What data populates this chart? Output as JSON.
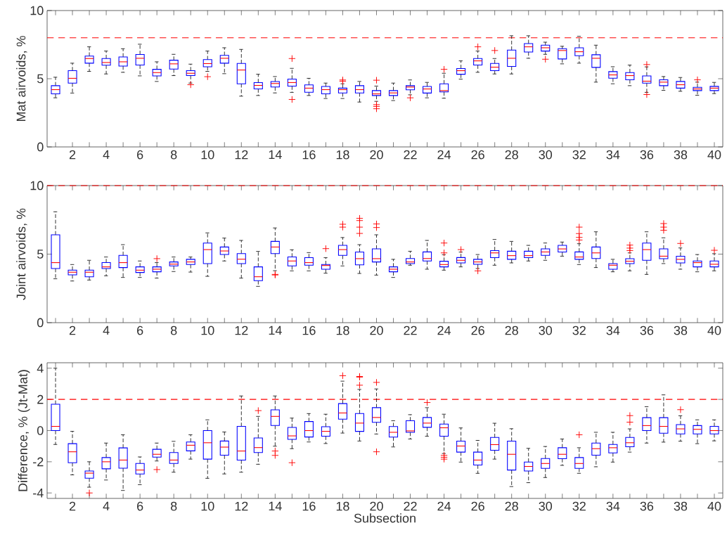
{
  "chart_data": [
    {
      "type": "box",
      "ylabel": "Mat airvoids, %",
      "color": "#0000ff",
      "grid": false,
      "categories": [
        null,
        "2",
        null,
        "4",
        null,
        "6",
        null,
        "8",
        null,
        "10",
        null,
        "12",
        null,
        "14",
        null,
        "16",
        null,
        "18",
        null,
        "20",
        null,
        "22",
        null,
        "24",
        null,
        "26",
        null,
        "28",
        null,
        "30",
        null,
        "32",
        null,
        "34",
        null,
        "36",
        null,
        "38",
        null,
        "40"
      ],
      "ylim": [
        0,
        10
      ],
      "yticks": [
        0,
        5,
        10
      ],
      "ref_lines": [
        {
          "axis": "y",
          "value": 8,
          "color": "#ff0000",
          "line_style": "dashed"
        }
      ],
      "boxes": [
        {
          "low": 3.6,
          "q1": 3.89,
          "median": 4.2,
          "q3": 4.49,
          "high": 5.11
        },
        {
          "low": 3.95,
          "q1": 4.68,
          "median": 5.03,
          "q3": 5.59,
          "high": 6.14
        },
        {
          "low": 5.54,
          "q1": 6.14,
          "median": 6.48,
          "q3": 6.66,
          "high": 7.34
        },
        {
          "low": 5.35,
          "q1": 5.99,
          "median": 6.19,
          "q3": 6.48,
          "high": 7.03
        },
        {
          "low": 5.47,
          "q1": 5.93,
          "median": 6.24,
          "q3": 6.6,
          "high": 7.2
        },
        {
          "low": 5.21,
          "q1": 6.0,
          "median": 6.5,
          "q3": 6.78,
          "high": 7.53
        },
        {
          "low": 4.8,
          "q1": 5.21,
          "median": 5.45,
          "q3": 5.69,
          "high": 6.24
        },
        {
          "low": 5.23,
          "q1": 5.71,
          "median": 6.09,
          "q3": 6.36,
          "high": 6.79
        },
        {
          "low": 4.68,
          "q1": 5.23,
          "median": 5.4,
          "q3": 5.59,
          "high": 6.07,
          "outliers": [
            4.56
          ]
        },
        {
          "low": 5.54,
          "q1": 5.88,
          "median": 6.11,
          "q3": 6.4,
          "high": 7.03,
          "outliers": [
            5.15
          ]
        },
        {
          "low": 5.37,
          "q1": 6.14,
          "median": 6.5,
          "q3": 6.71,
          "high": 7.27
        },
        {
          "low": 3.72,
          "q1": 4.63,
          "median": 5.64,
          "q3": 6.12,
          "high": 7.15
        },
        {
          "low": 3.77,
          "q1": 4.25,
          "median": 4.51,
          "q3": 4.72,
          "high": 5.33
        },
        {
          "low": 3.96,
          "q1": 4.39,
          "median": 4.65,
          "q3": 4.79,
          "high": 5.16
        },
        {
          "low": 4.0,
          "q1": 4.46,
          "median": 4.72,
          "q3": 4.97,
          "high": 5.76,
          "outliers": [
            6.48,
            3.48
          ]
        },
        {
          "low": 3.77,
          "q1": 4.01,
          "median": 4.31,
          "q3": 4.55,
          "high": 5.03
        },
        {
          "low": 3.55,
          "q1": 3.89,
          "median": 4.2,
          "q3": 4.43,
          "high": 4.68
        },
        {
          "low": 3.55,
          "q1": 3.96,
          "median": 4.2,
          "q3": 4.31,
          "high": 4.63,
          "outliers": [
            4.91,
            4.82
          ]
        },
        {
          "low": 3.29,
          "q1": 3.96,
          "median": 4.2,
          "q3": 4.49,
          "high": 4.8
        },
        {
          "low": 3.34,
          "q1": 3.77,
          "median": 3.89,
          "q3": 4.13,
          "high": 4.46,
          "outliers": [
            4.89,
            3.1,
            2.97,
            2.8
          ]
        },
        {
          "low": 3.4,
          "q1": 3.77,
          "median": 3.96,
          "q3": 4.13,
          "high": 4.68
        },
        {
          "low": 3.82,
          "q1": 4.19,
          "median": 4.39,
          "q3": 4.49,
          "high": 4.91,
          "outliers": [
            3.6
          ]
        },
        {
          "low": 3.6,
          "q1": 3.95,
          "median": 4.25,
          "q3": 4.43,
          "high": 4.73
        },
        {
          "low": 3.57,
          "q1": 4.03,
          "median": 4.13,
          "q3": 4.63,
          "high": 5.4,
          "outliers": [
            5.69
          ]
        },
        {
          "low": 4.97,
          "q1": 5.33,
          "median": 5.59,
          "q3": 5.75,
          "high": 6.31
        },
        {
          "low": 5.47,
          "q1": 6.0,
          "median": 6.31,
          "q3": 6.48,
          "high": 7.03,
          "outliers": [
            7.34
          ]
        },
        {
          "low": 5.35,
          "q1": 5.59,
          "median": 5.85,
          "q3": 6.12,
          "high": 6.48,
          "outliers": [
            7.07
          ]
        },
        {
          "low": 5.35,
          "q1": 5.9,
          "median": 6.5,
          "q3": 7.1,
          "high": 8.15
        },
        {
          "low": 6.5,
          "q1": 6.96,
          "median": 7.34,
          "q3": 7.58,
          "high": 8.15
        },
        {
          "low": 6.79,
          "q1": 7.03,
          "median": 7.27,
          "q3": 7.46,
          "high": 7.68,
          "outliers": [
            6.43
          ]
        },
        {
          "low": 6.09,
          "q1": 6.45,
          "median": 7.07,
          "q3": 7.2,
          "high": 7.38
        },
        {
          "low": 6.14,
          "q1": 6.69,
          "median": 6.98,
          "q3": 7.27,
          "high": 8.11
        },
        {
          "low": 4.75,
          "q1": 5.83,
          "median": 6.5,
          "q3": 6.76,
          "high": 7.46
        },
        {
          "low": 4.63,
          "q1": 5.04,
          "median": 5.28,
          "q3": 5.52,
          "high": 5.88
        },
        {
          "low": 4.49,
          "q1": 4.92,
          "median": 5.23,
          "q3": 5.45,
          "high": 6.0
        },
        {
          "low": 4.0,
          "q1": 4.68,
          "median": 4.82,
          "q3": 5.21,
          "high": 5.87,
          "outliers": [
            6.04,
            3.84
          ]
        },
        {
          "low": 4.15,
          "q1": 4.49,
          "median": 4.75,
          "q3": 4.92,
          "high": 5.16
        },
        {
          "low": 4.08,
          "q1": 4.31,
          "median": 4.56,
          "q3": 4.8,
          "high": 5.09
        },
        {
          "low": 3.79,
          "q1": 4.13,
          "median": 4.25,
          "q3": 4.37,
          "high": 4.75,
          "outliers": [
            4.92
          ]
        },
        {
          "low": 3.91,
          "q1": 4.13,
          "median": 4.31,
          "q3": 4.44,
          "high": 4.73
        }
      ]
    },
    {
      "type": "box",
      "ylabel": "Joint airvoids, %",
      "color": "#0000ff",
      "grid": false,
      "categories": [
        null,
        "2",
        null,
        "4",
        null,
        "6",
        null,
        "8",
        null,
        "10",
        null,
        "12",
        null,
        "14",
        null,
        "16",
        null,
        "18",
        null,
        "20",
        null,
        "22",
        null,
        "24",
        null,
        "26",
        null,
        "28",
        null,
        "30",
        null,
        "32",
        null,
        "34",
        null,
        "36",
        null,
        "38",
        null,
        "40"
      ],
      "ylim": [
        0,
        10
      ],
      "yticks": [
        0,
        5,
        10
      ],
      "ref_lines": [
        {
          "axis": "y",
          "value": 10,
          "color": "#ff0000",
          "line_style": "dashed"
        }
      ],
      "boxes": [
        {
          "low": 3.2,
          "q1": 3.95,
          "median": 4.38,
          "q3": 6.41,
          "high": 8.09
        },
        {
          "low": 3.04,
          "q1": 3.49,
          "median": 3.68,
          "q3": 3.83,
          "high": 4.24
        },
        {
          "low": 3.11,
          "q1": 3.35,
          "median": 3.68,
          "q3": 3.83,
          "high": 4.55
        },
        {
          "low": 3.42,
          "q1": 3.95,
          "median": 4.07,
          "q3": 4.38,
          "high": 4.79
        },
        {
          "low": 3.3,
          "q1": 4.02,
          "median": 4.38,
          "q3": 4.91,
          "high": 5.69
        },
        {
          "low": 3.3,
          "q1": 3.66,
          "median": 3.83,
          "q3": 4.07,
          "high": 4.5
        },
        {
          "low": 3.25,
          "q1": 3.71,
          "median": 3.9,
          "q3": 4.07,
          "high": 4.38,
          "outliers": [
            4.67
          ]
        },
        {
          "low": 3.73,
          "q1": 4.14,
          "median": 4.27,
          "q3": 4.43,
          "high": 4.79
        },
        {
          "low": 3.69,
          "q1": 4.24,
          "median": 4.43,
          "q3": 4.62,
          "high": 4.79
        },
        {
          "low": 3.38,
          "q1": 4.31,
          "median": 5.33,
          "q3": 5.81,
          "high": 6.55
        },
        {
          "low": 4.5,
          "q1": 4.97,
          "median": 5.23,
          "q3": 5.52,
          "high": 6.17
        },
        {
          "low": 3.25,
          "q1": 4.31,
          "median": 4.63,
          "q3": 5.04,
          "high": 6.0
        },
        {
          "low": 2.65,
          "q1": 3.06,
          "median": 3.35,
          "q3": 4.07,
          "high": 5.2
        },
        {
          "low": 3.79,
          "q1": 5.04,
          "median": 5.52,
          "q3": 5.93,
          "high": 6.91,
          "outliers": [
            3.52,
            3.48
          ]
        },
        {
          "low": 3.78,
          "q1": 4.14,
          "median": 4.5,
          "q3": 4.79,
          "high": 5.32
        },
        {
          "low": 3.78,
          "q1": 4.19,
          "median": 4.38,
          "q3": 4.74,
          "high": 5.11
        },
        {
          "low": 3.61,
          "q1": 3.9,
          "median": 4.17,
          "q3": 4.24,
          "high": 4.74,
          "outliers": [
            5.4
          ]
        },
        {
          "low": 4.14,
          "q1": 4.91,
          "median": 5.33,
          "q3": 5.64,
          "high": 6.21,
          "outliers": [
            7.18,
            6.97
          ]
        },
        {
          "low": 3.59,
          "q1": 4.22,
          "median": 4.67,
          "q3": 5.15,
          "high": 5.69,
          "outliers": [
            7.61,
            7.45,
            6.97,
            6.51
          ]
        },
        {
          "low": 3.47,
          "q1": 4.43,
          "median": 4.67,
          "q3": 5.38,
          "high": 6.41,
          "outliers": [
            7.2,
            6.94
          ]
        },
        {
          "low": 3.3,
          "q1": 3.71,
          "median": 3.9,
          "q3": 4.07,
          "high": 4.62
        },
        {
          "low": 4.19,
          "q1": 4.31,
          "median": 4.43,
          "q3": 4.68,
          "high": 5.21
        },
        {
          "low": 3.9,
          "q1": 4.5,
          "median": 4.68,
          "q3": 5.16,
          "high": 6.0
        },
        {
          "low": 3.83,
          "q1": 4.07,
          "median": 4.24,
          "q3": 4.48,
          "high": 4.96,
          "outliers": [
            5.81,
            5.09
          ]
        },
        {
          "low": 4.07,
          "q1": 4.36,
          "median": 4.55,
          "q3": 4.75,
          "high": 5.15,
          "outliers": [
            5.33
          ]
        },
        {
          "low": 3.95,
          "q1": 4.26,
          "median": 4.43,
          "q3": 4.62,
          "high": 4.97,
          "outliers": [
            3.78
          ]
        },
        {
          "low": 4.19,
          "q1": 4.74,
          "median": 5.09,
          "q3": 5.26,
          "high": 6.07
        },
        {
          "low": 4.36,
          "q1": 4.62,
          "median": 4.89,
          "q3": 5.21,
          "high": 5.93
        },
        {
          "low": 4.5,
          "q1": 4.74,
          "median": 4.89,
          "q3": 5.21,
          "high": 5.64
        },
        {
          "low": 4.55,
          "q1": 4.91,
          "median": 5.16,
          "q3": 5.38,
          "high": 5.81
        },
        {
          "low": 4.85,
          "q1": 5.15,
          "median": 5.38,
          "q3": 5.64,
          "high": 5.88
        },
        {
          "low": 4.24,
          "q1": 4.62,
          "median": 4.79,
          "q3": 5.16,
          "high": 5.76,
          "outliers": [
            6.97,
            6.5,
            6.22,
            6.03
          ]
        },
        {
          "low": 4.02,
          "q1": 4.68,
          "median": 5.09,
          "q3": 5.52,
          "high": 6.63
        },
        {
          "low": 3.71,
          "q1": 3.9,
          "median": 4.19,
          "q3": 4.31,
          "high": 4.62
        },
        {
          "low": 3.78,
          "q1": 4.31,
          "median": 4.48,
          "q3": 4.67,
          "high": 5.09,
          "outliers": [
            5.66,
            5.44,
            5.26
          ]
        },
        {
          "low": 3.52,
          "q1": 4.55,
          "median": 5.33,
          "q3": 5.81,
          "high": 6.63
        },
        {
          "low": 4.31,
          "q1": 4.67,
          "median": 4.85,
          "q3": 5.38,
          "high": 6.19,
          "outliers": [
            7.23,
            6.97,
            6.74
          ]
        },
        {
          "low": 3.9,
          "q1": 4.36,
          "median": 4.62,
          "q3": 4.85,
          "high": 5.45,
          "outliers": [
            5.78
          ]
        },
        {
          "low": 3.71,
          "q1": 4.07,
          "median": 4.38,
          "q3": 4.5,
          "high": 4.97
        },
        {
          "low": 3.78,
          "q1": 4.07,
          "median": 4.26,
          "q3": 4.5,
          "high": 5.03,
          "outliers": [
            5.28
          ]
        }
      ]
    },
    {
      "type": "box",
      "ylabel": "Difference, % (Jt-Mat)",
      "xlabel": "Subsection",
      "color": "#0000ff",
      "grid": false,
      "categories": [
        null,
        "2",
        null,
        "4",
        null,
        "6",
        null,
        "8",
        null,
        "10",
        null,
        "12",
        null,
        "14",
        null,
        "16",
        null,
        "18",
        null,
        "20",
        null,
        "22",
        null,
        "24",
        null,
        "26",
        null,
        "28",
        null,
        "30",
        null,
        "32",
        null,
        "34",
        null,
        "36",
        null,
        "38",
        null,
        "40"
      ],
      "ylim": [
        -4.35,
        4.35
      ],
      "yticks": [
        -4,
        -2,
        0,
        2,
        4
      ],
      "ref_lines": [
        {
          "axis": "y",
          "value": 2,
          "color": "#ff0000",
          "line_style": "dashed"
        }
      ],
      "boxes": [
        {
          "low": -0.89,
          "q1": 0.0,
          "median": 0.27,
          "q3": 1.69,
          "high": 4.0
        },
        {
          "low": -2.84,
          "q1": -2.06,
          "median": -1.36,
          "q3": -0.84,
          "high": -0.05
        },
        {
          "low": -3.63,
          "q1": -3.05,
          "median": -2.73,
          "q3": -2.59,
          "high": -2.0,
          "outliers": [
            -4.0
          ]
        },
        {
          "low": -3.17,
          "q1": -2.45,
          "median": -2.0,
          "q3": -1.73,
          "high": -0.8
        },
        {
          "low": -3.84,
          "q1": -2.41,
          "median": -1.89,
          "q3": -1.11,
          "high": -0.27
        },
        {
          "low": -3.47,
          "q1": -2.78,
          "median": -2.53,
          "q3": -2.11,
          "high": -1.69
        },
        {
          "low": -1.95,
          "q1": -1.7,
          "median": -1.52,
          "q3": -1.2,
          "high": -0.8,
          "outliers": [
            -2.5
          ]
        },
        {
          "low": -2.67,
          "q1": -2.11,
          "median": -1.89,
          "q3": -1.41,
          "high": -0.69
        },
        {
          "low": -1.83,
          "q1": -1.3,
          "median": -0.94,
          "q3": -0.73,
          "high": -0.27
        },
        {
          "low": -3.06,
          "q1": -1.83,
          "median": -0.78,
          "q3": 0.0,
          "high": 0.69
        },
        {
          "low": -2.78,
          "q1": -1.58,
          "median": -1.06,
          "q3": -0.67,
          "high": -0.09
        },
        {
          "low": -2.67,
          "q1": -1.89,
          "median": -1.31,
          "q3": 0.27,
          "high": 2.22
        },
        {
          "low": -2.16,
          "q1": -1.41,
          "median": -1.09,
          "q3": -0.47,
          "high": 0.91,
          "outliers": [
            1.28
          ]
        },
        {
          "low": -1.0,
          "q1": 0.33,
          "median": 0.91,
          "q3": 1.33,
          "high": 2.22,
          "outliers": [
            -1.31,
            -1.59
          ]
        },
        {
          "low": -1.16,
          "q1": -0.56,
          "median": -0.34,
          "q3": 0.2,
          "high": 0.8,
          "outliers": [
            -2.06
          ]
        },
        {
          "low": -0.73,
          "q1": -0.41,
          "median": 0.0,
          "q3": 0.58,
          "high": 1.09
        },
        {
          "low": -0.83,
          "q1": -0.36,
          "median": -0.05,
          "q3": 0.25,
          "high": 1.05
        },
        {
          "low": -0.16,
          "q1": 0.73,
          "median": 1.13,
          "q3": 1.73,
          "high": 3.17,
          "outliers": [
            3.52
          ]
        },
        {
          "low": -0.67,
          "q1": -0.05,
          "median": 0.48,
          "q3": 1.09,
          "high": 2.64,
          "outliers": [
            3.47,
            3.43,
            2.91
          ]
        },
        {
          "low": -0.22,
          "q1": 0.53,
          "median": 0.84,
          "q3": 1.47,
          "high": 2.67,
          "outliers": [
            3.09,
            -1.36
          ]
        },
        {
          "low": -1.05,
          "q1": -0.42,
          "median": -0.11,
          "q3": 0.26,
          "high": 0.63
        },
        {
          "low": -0.54,
          "q1": -0.11,
          "median": -0.02,
          "q3": 0.63,
          "high": 1.02
        },
        {
          "low": -0.36,
          "q1": 0.21,
          "median": 0.48,
          "q3": 0.84,
          "high": 1.47,
          "outliers": [
            1.8
          ]
        },
        {
          "low": -1.47,
          "q1": -0.36,
          "median": 0.18,
          "q3": 0.42,
          "high": 1.05,
          "outliers": [
            -1.59,
            -1.71,
            -1.83
          ]
        },
        {
          "low": -2.02,
          "q1": -1.38,
          "median": -0.99,
          "q3": -0.68,
          "high": 0.17
        },
        {
          "low": -2.74,
          "q1": -2.21,
          "median": -1.89,
          "q3": -1.38,
          "high": -0.63
        },
        {
          "low": -1.83,
          "q1": -1.26,
          "median": -0.9,
          "q3": -0.44,
          "high": 0.47
        },
        {
          "low": -3.59,
          "q1": -2.53,
          "median": -1.52,
          "q3": -0.68,
          "high": 0.12
        },
        {
          "low": -3.34,
          "q1": -2.59,
          "median": -2.3,
          "q3": -2.02,
          "high": -1.14
        },
        {
          "low": -3.01,
          "q1": -2.42,
          "median": -2.11,
          "q3": -1.79,
          "high": -1.02
        },
        {
          "low": -2.23,
          "q1": -1.8,
          "median": -1.52,
          "q3": -1.1,
          "high": -0.54
        },
        {
          "low": -2.74,
          "q1": -2.42,
          "median": -2.11,
          "q3": -1.73,
          "high": -1.1,
          "outliers": [
            -0.27
          ]
        },
        {
          "low": -2.32,
          "q1": -1.58,
          "median": -1.16,
          "q3": -0.8,
          "high": -0.11
        },
        {
          "low": -2.02,
          "q1": -1.43,
          "median": -1.1,
          "q3": -0.89,
          "high": -0.11
        },
        {
          "low": -1.38,
          "q1": -1.04,
          "median": -0.78,
          "q3": -0.44,
          "high": 0.11,
          "outliers": [
            0.96,
            0.54
          ]
        },
        {
          "low": -0.8,
          "q1": 0.0,
          "median": 0.32,
          "q3": 0.83,
          "high": 1.53
        },
        {
          "low": -0.74,
          "q1": -0.17,
          "median": 0.27,
          "q3": 0.83,
          "high": 2.29
        },
        {
          "low": -0.68,
          "q1": -0.21,
          "median": 0.11,
          "q3": 0.38,
          "high": 0.95,
          "outliers": [
            1.34
          ]
        },
        {
          "low": -0.84,
          "q1": -0.21,
          "median": 0.08,
          "q3": 0.32,
          "high": 0.69
        },
        {
          "low": -0.66,
          "q1": -0.21,
          "median": 0.0,
          "q3": 0.27,
          "high": 0.69
        }
      ]
    }
  ]
}
